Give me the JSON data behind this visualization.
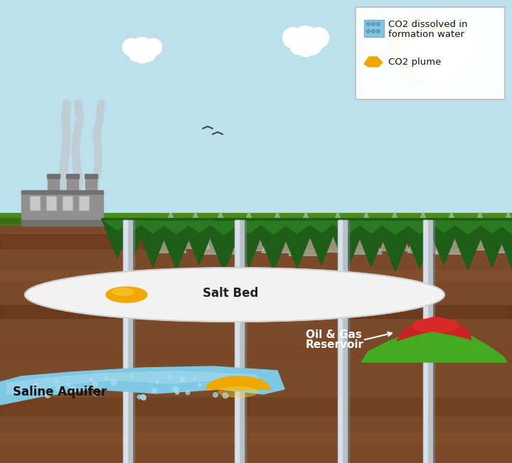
{
  "sky_color": "#bde0ed",
  "soil_color": "#7a4a2a",
  "soil_dark1": "#5c3318",
  "soil_dark2": "#6b3d20",
  "soil_dark3": "#8a5530",
  "grass_color": "#4a8a1e",
  "grass_dark": "#3a7010",
  "salt_bed_color": "#f2f2f2",
  "co2_plume_color": "#f0a800",
  "saline_water_color": "#7ec8e3",
  "saline_water_light": "#a8ddf0",
  "reservoir_green": "#44aa22",
  "reservoir_red": "#cc2222",
  "pipe_color": "#b8c0c8",
  "pipe_hi": "#d8e0e8",
  "pipe_shadow": "#788088",
  "legend_bg": "#ffffff",
  "legend_border": "#cccccc",
  "sun_color": "#f5c518",
  "smoke_color": "#c0c0c0",
  "factory_color": "#909090",
  "factory_dark": "#707070",
  "factory_window": "#c8c8c8",
  "tree_dark": "#1e5e18",
  "tree_mid": "#2a7a22",
  "tree_light": "#3a9030",
  "tree_bg": "#aaccbb",
  "bird_color": "#444444",
  "label_salt_bed": "Salt Bed",
  "label_saline": "Saline Aquifer",
  "label_oil_gas1": "Oil & Gas",
  "label_oil_gas2": "Reservoir",
  "legend_text1a": "CO2 dissolved in",
  "legend_text1b": "formation water",
  "legend_text2": "CO2 plume"
}
